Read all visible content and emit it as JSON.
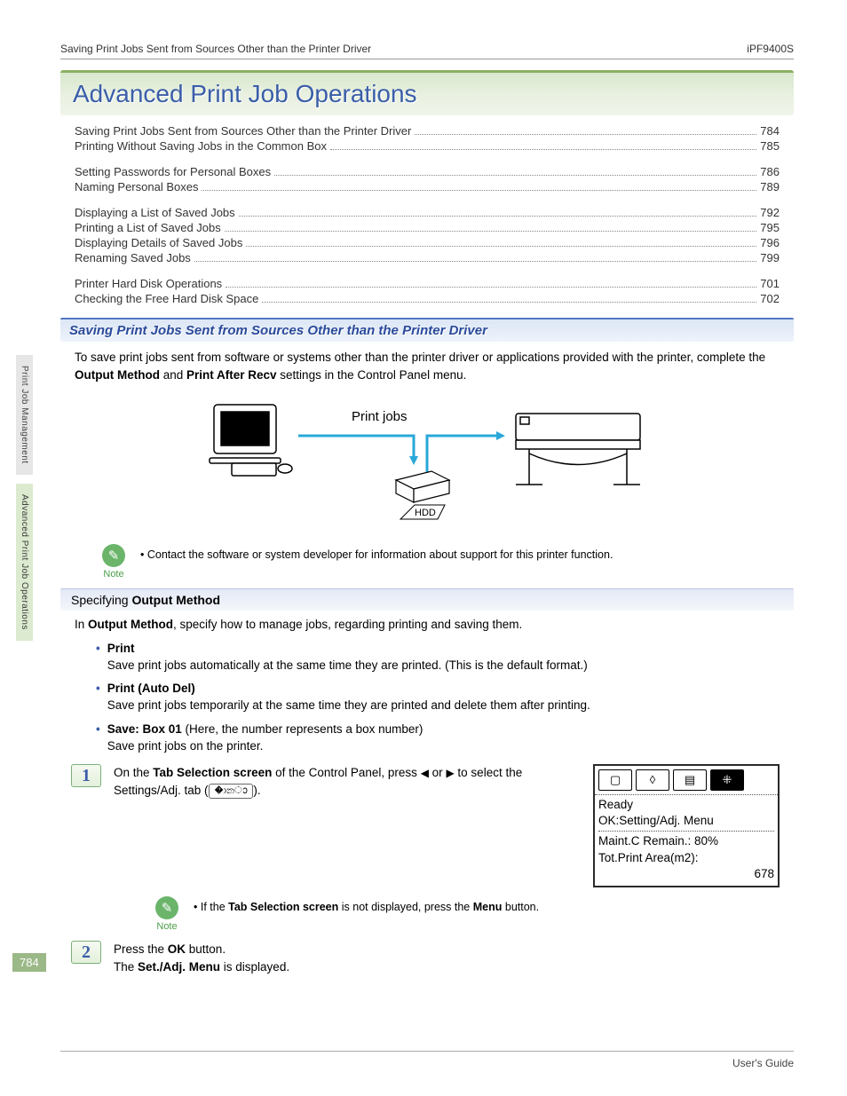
{
  "header": {
    "left": "Saving Print Jobs Sent from Sources Other than the Printer Driver",
    "right": "iPF9400S"
  },
  "chapter_title": "Advanced Print Job Operations",
  "toc": [
    [
      {
        "label": "Saving Print Jobs Sent from Sources Other than the Printer Driver",
        "page": "784"
      },
      {
        "label": "Printing Without Saving Jobs in the Common Box",
        "page": "785"
      }
    ],
    [
      {
        "label": "Setting Passwords for Personal Boxes",
        "page": "786"
      },
      {
        "label": "Naming Personal Boxes",
        "page": "789"
      }
    ],
    [
      {
        "label": "Displaying a List of Saved Jobs",
        "page": "792"
      },
      {
        "label": "Printing a List of Saved Jobs",
        "page": "795"
      },
      {
        "label": "Displaying Details of Saved Jobs",
        "page": "796"
      },
      {
        "label": "Renaming Saved Jobs",
        "page": "799"
      }
    ],
    [
      {
        "label": "Printer Hard Disk Operations",
        "page": "701"
      },
      {
        "label": "Checking the Free Hard Disk Space",
        "page": "702"
      }
    ]
  ],
  "section_heading": "Saving Print Jobs Sent from Sources Other than the Printer Driver",
  "intro": {
    "pre": "To save print jobs sent from software or systems other than the printer driver or applications provided with the printer, complete the ",
    "b1": "Output Method",
    "mid": " and ",
    "b2": "Print After Recv",
    "post": " settings in the Control Panel menu."
  },
  "diagram": {
    "label": "Print jobs",
    "hdd": "HDD"
  },
  "note1": {
    "label": "Note",
    "text": "Contact the software or system developer for information about support for this printer function."
  },
  "sub_heading": {
    "pre": "Specifying ",
    "b": "Output Method"
  },
  "sub_intro": {
    "pre": "In ",
    "b": "Output Method",
    "post": ", specify how to manage jobs, regarding printing and saving them."
  },
  "options": [
    {
      "title": "Print",
      "desc": "Save print jobs automatically at the same time they are printed. (This is the default format.)"
    },
    {
      "title": "Print (Auto Del)",
      "desc": "Save print jobs temporarily at the same time they are printed and delete them after printing."
    },
    {
      "title": "Save: Box 01",
      "suffix": " (Here, the number represents a box number)",
      "desc": "Save print jobs on the printer."
    }
  ],
  "step1": {
    "num": "1",
    "pre": "On the ",
    "b1": "Tab Selection screen",
    "mid1": " of the Control Panel, press ",
    "mid2": " or ",
    "mid3": " to select the Settings/Adj. tab (",
    "post": ")."
  },
  "lcd": {
    "line1": "Ready",
    "line2": "OK:Setting/Adj. Menu",
    "line3": "Maint.C Remain.: 80%",
    "line4": "Tot.Print Area(m2):",
    "line5": "678"
  },
  "note2": {
    "label": "Note",
    "pre": "If the ",
    "b1": "Tab Selection screen",
    "mid": " is not displayed, press the ",
    "b2": "Menu",
    "post": " button."
  },
  "step2": {
    "num": "2",
    "line1_pre": "Press the ",
    "line1_b": "OK",
    "line1_post": " button.",
    "line2_pre": "The ",
    "line2_b": "Set./Adj. Menu",
    "line2_post": " is displayed."
  },
  "side_tabs": {
    "tab1": "Print Job Management",
    "tab2": "Advanced Print Job Operations"
  },
  "page_number": "784",
  "footer": "User's Guide"
}
